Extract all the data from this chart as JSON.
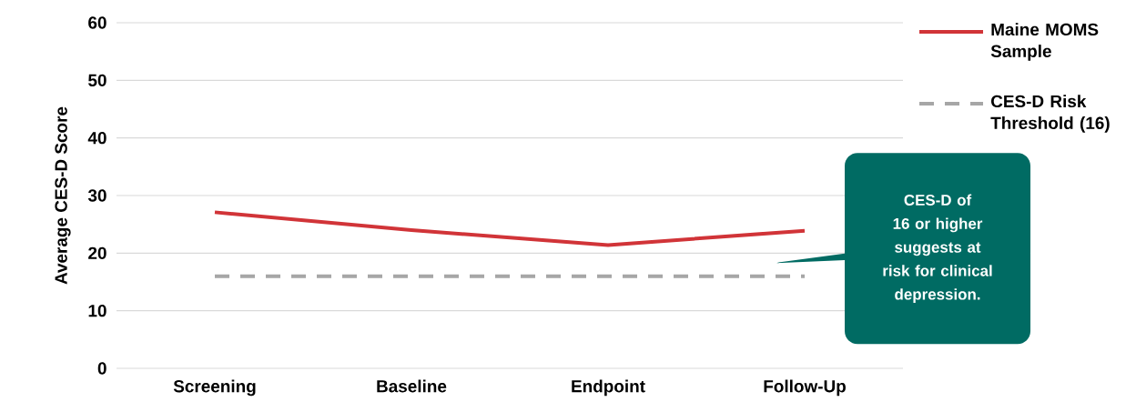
{
  "chart_data": {
    "type": "line",
    "ylabel": "Average CES-D Score",
    "categories": [
      "Screening",
      "Baseline",
      "Endpoint",
      "Follow-Up"
    ],
    "series": [
      {
        "name": "Maine MOMS Sample",
        "color": "#d13438",
        "values": [
          27.1,
          24,
          21.4,
          23.9
        ]
      },
      {
        "name": "CES-D Risk Threshold (16)",
        "color": "#a6a6a6",
        "values": [
          16,
          16,
          16,
          16
        ],
        "line_style": "dashed"
      }
    ],
    "ylim": [
      0,
      60
    ],
    "yticks": [
      0,
      10,
      20,
      30,
      40,
      50,
      60
    ],
    "grid": "y",
    "legend": "right",
    "marker": "none",
    "line_style": "solid",
    "annotations": [
      "CES-D of 16 or higher suggests at risk for clinical depression."
    ]
  }
}
